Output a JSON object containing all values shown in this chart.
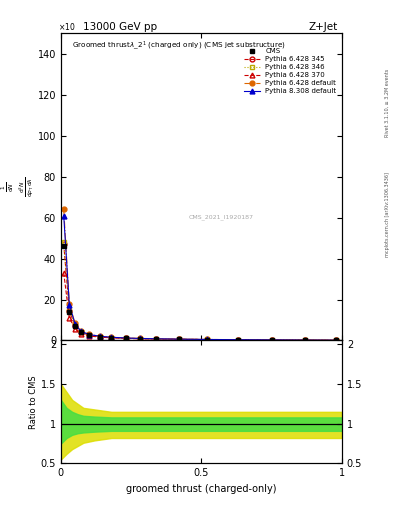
{
  "title_energy": "13000 GeV pp",
  "title_process": "Z+Jet",
  "xlabel": "groomed thrust (charged-only)",
  "ylabel_ratio": "Ratio to CMS",
  "watermark": "CMS_2021_I1920187",
  "rivet_label": "Rivet 3.1.10, ≥ 3.2M events",
  "mcplots_label": "mcplots.cern.ch [arXiv:1306.3436]",
  "xlim": [
    0,
    1
  ],
  "ylim_main": [
    0,
    150
  ],
  "ylim_ratio": [
    0.5,
    2.05
  ],
  "yticks_main": [
    0,
    20,
    40,
    60,
    80,
    100,
    120,
    140
  ],
  "yticks_ratio": [
    0.5,
    1.0,
    1.5,
    2.0
  ],
  "data_x": [
    0.01,
    0.03,
    0.05,
    0.07,
    0.1,
    0.14,
    0.18,
    0.23,
    0.28,
    0.34,
    0.42,
    0.52,
    0.63,
    0.75,
    0.87,
    0.98
  ],
  "cms_y": [
    46.0,
    14.0,
    7.0,
    4.0,
    2.5,
    1.8,
    1.4,
    1.1,
    0.9,
    0.75,
    0.6,
    0.45,
    0.35,
    0.25,
    0.18,
    0.12
  ],
  "py6_345_y": [
    47.0,
    14.5,
    7.2,
    4.1,
    2.6,
    1.85,
    1.42,
    1.12,
    0.92,
    0.77,
    0.62,
    0.47,
    0.37,
    0.27,
    0.19,
    0.13
  ],
  "py6_346_y": [
    48.0,
    15.0,
    7.4,
    4.2,
    2.65,
    1.88,
    1.44,
    1.14,
    0.94,
    0.79,
    0.64,
    0.49,
    0.38,
    0.28,
    0.2,
    0.14
  ],
  "py6_370_y": [
    33.0,
    11.0,
    5.8,
    3.4,
    2.2,
    1.62,
    1.26,
    1.0,
    0.82,
    0.68,
    0.55,
    0.42,
    0.32,
    0.23,
    0.16,
    0.11
  ],
  "py6_default_y": [
    64.0,
    18.0,
    8.5,
    4.8,
    3.0,
    2.1,
    1.6,
    1.25,
    1.02,
    0.84,
    0.67,
    0.51,
    0.39,
    0.29,
    0.21,
    0.14
  ],
  "py8_default_y": [
    61.0,
    17.5,
    8.2,
    4.6,
    2.9,
    2.05,
    1.57,
    1.22,
    0.99,
    0.82,
    0.66,
    0.5,
    0.38,
    0.28,
    0.2,
    0.13
  ],
  "band_x": [
    0.0,
    0.02,
    0.04,
    0.06,
    0.08,
    0.12,
    0.18,
    0.25,
    0.35,
    0.5,
    0.65,
    0.8,
    1.0
  ],
  "green_band_upper": [
    1.3,
    1.2,
    1.15,
    1.12,
    1.1,
    1.09,
    1.08,
    1.08,
    1.08,
    1.08,
    1.08,
    1.08,
    1.08
  ],
  "green_band_lower": [
    0.75,
    0.82,
    0.86,
    0.88,
    0.89,
    0.9,
    0.91,
    0.91,
    0.91,
    0.91,
    0.91,
    0.91,
    0.91
  ],
  "yellow_band_upper": [
    1.5,
    1.4,
    1.3,
    1.25,
    1.2,
    1.18,
    1.15,
    1.15,
    1.15,
    1.15,
    1.15,
    1.15,
    1.15
  ],
  "yellow_band_lower": [
    0.55,
    0.62,
    0.68,
    0.72,
    0.76,
    0.79,
    0.82,
    0.82,
    0.82,
    0.82,
    0.82,
    0.82,
    0.82
  ],
  "colors": {
    "cms": "black",
    "py6_345": "#cc0000",
    "py6_346": "#bbaa00",
    "py6_370": "#cc0000",
    "py6_default": "#dd6600",
    "py8_default": "#0000cc"
  },
  "legend_entries": [
    "CMS",
    "Pythia 6.428 345",
    "Pythia 6.428 346",
    "Pythia 6.428 370",
    "Pythia 6.428 default",
    "Pythia 8.308 default"
  ]
}
